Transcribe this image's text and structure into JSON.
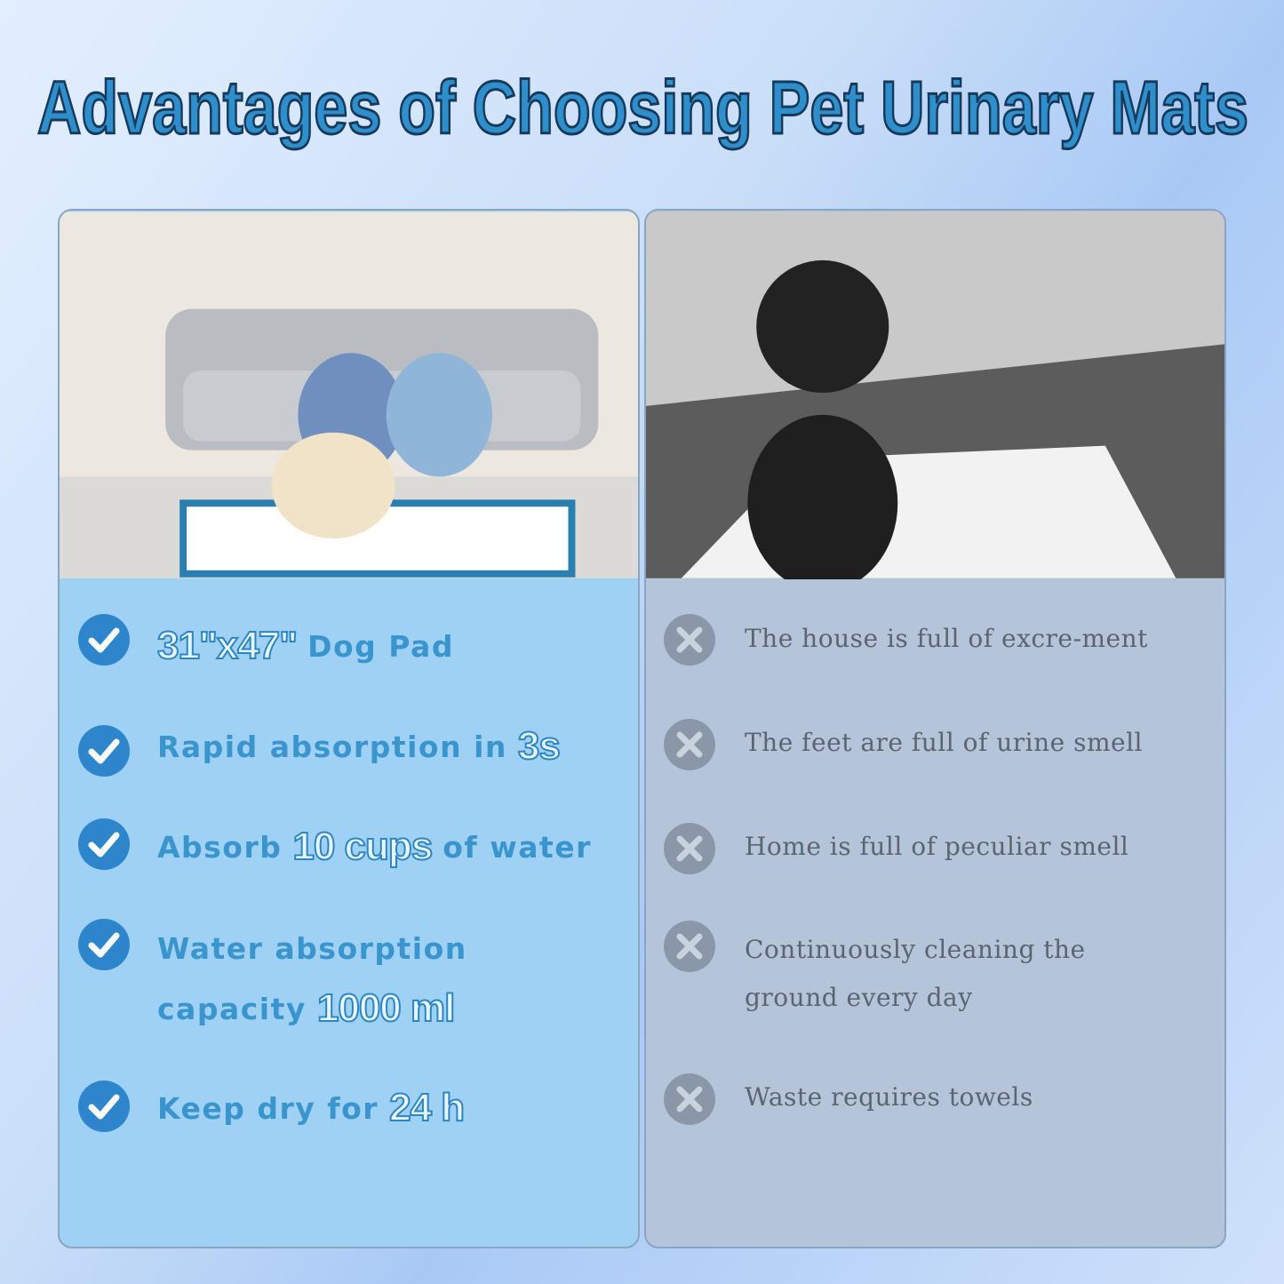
{
  "header": {
    "title": "Advantages of Choosing Pet Urinary Mats"
  },
  "pros": [
    {
      "lines": [
        [
          {
            "text": "31\"x47\"",
            "style": "highlight"
          },
          {
            "text": "Dog Pad",
            "style": "plain"
          }
        ]
      ]
    },
    {
      "lines": [
        [
          {
            "text": "Rapid absorption in",
            "style": "plain"
          },
          {
            "text": "3s",
            "style": "highlight"
          }
        ]
      ]
    },
    {
      "lines": [
        [
          {
            "text": "Absorb",
            "style": "plain"
          },
          {
            "text": "10 cups",
            "style": "highlight"
          },
          {
            "text": "of water",
            "style": "plain"
          }
        ]
      ]
    },
    {
      "lines": [
        [
          {
            "text": "Water absorption",
            "style": "plain"
          }
        ],
        [
          {
            "text": "capacity",
            "style": "plain"
          },
          {
            "text": "1000 ml",
            "style": "highlight"
          }
        ]
      ]
    },
    {
      "lines": [
        [
          {
            "text": "Keep dry for",
            "style": "plain"
          },
          {
            "text": "24 h",
            "style": "highlight"
          }
        ]
      ]
    }
  ],
  "cons": [
    {
      "lines": [
        "The house is full of excre-ment"
      ]
    },
    {
      "lines": [
        "The feet are full of urine smell"
      ]
    },
    {
      "lines": [
        "Home is full of peculiar smell"
      ]
    },
    {
      "lines": [
        "Continuously cleaning the",
        "ground every day"
      ]
    },
    {
      "lines": [
        "Waste requires towels"
      ]
    }
  ]
}
